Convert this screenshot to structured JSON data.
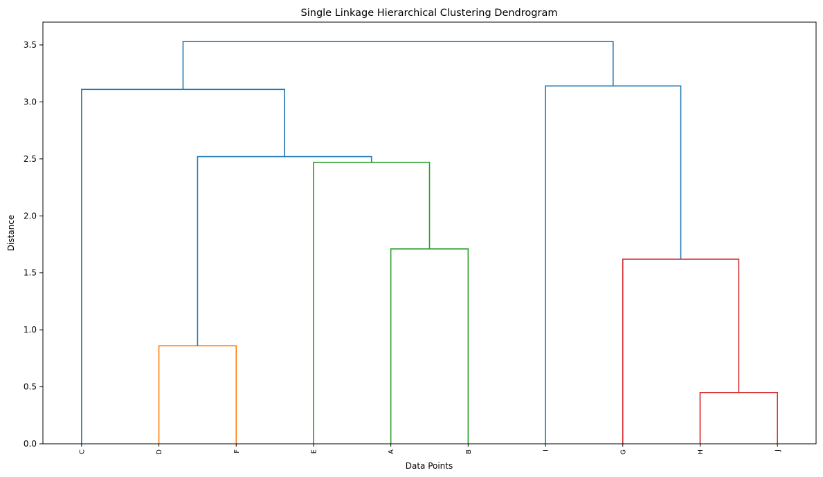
{
  "chart_data": {
    "type": "dendrogram",
    "title": "Single Linkage Hierarchical Clustering Dendrogram",
    "xlabel": "Data Points",
    "ylabel": "Distance",
    "ylim": [
      0,
      3.7
    ],
    "yticks": [
      "0.0",
      "0.5",
      "1.0",
      "1.5",
      "2.0",
      "2.5",
      "3.0",
      "3.5"
    ],
    "leaves": [
      "C",
      "D",
      "F",
      "E",
      "A",
      "B",
      "I",
      "G",
      "H",
      "J"
    ],
    "links": [
      {
        "left": "D",
        "right": "F",
        "height": 0.86,
        "color": "#ff7f0e"
      },
      {
        "left": "H",
        "right": "J",
        "height": 0.45,
        "color": "#d62728"
      },
      {
        "left": "G",
        "right": "(H,J)",
        "height": 1.62,
        "color": "#d62728"
      },
      {
        "left": "A",
        "right": "B",
        "height": 1.71,
        "color": "#2ca02c"
      },
      {
        "left": "E",
        "right": "(A,B)",
        "height": 2.47,
        "color": "#2ca02c"
      },
      {
        "left": "(D,F)",
        "right": "(E,A,B)",
        "height": 2.52,
        "color": "#1f77b4"
      },
      {
        "left": "C",
        "right": "(D,F,E,A,B)",
        "height": 3.11,
        "color": "#1f77b4"
      },
      {
        "left": "I",
        "right": "(G,H,J)",
        "height": 3.14,
        "color": "#1f77b4"
      },
      {
        "left": "(C,D,F,E,A,B)",
        "right": "(I,G,H,J)",
        "height": 3.53,
        "color": "#1f77b4"
      }
    ]
  }
}
